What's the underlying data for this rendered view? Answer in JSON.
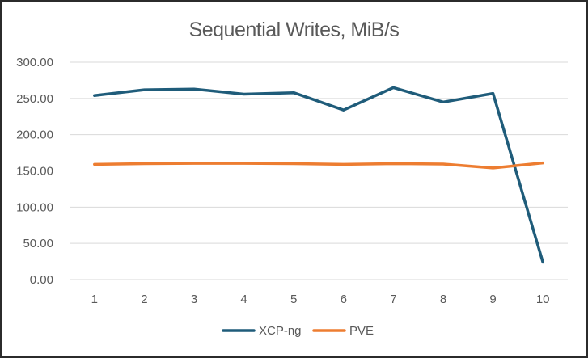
{
  "chart_data": {
    "type": "line",
    "title": "Sequential Writes, MiB/s",
    "xlabel": "",
    "ylabel": "",
    "categories": [
      "1",
      "2",
      "3",
      "4",
      "5",
      "6",
      "7",
      "8",
      "9",
      "10"
    ],
    "y_tick_labels": [
      "0.00",
      "50.00",
      "100.00",
      "150.00",
      "200.00",
      "250.00",
      "300.00"
    ],
    "ylim": [
      0,
      300
    ],
    "grid": true,
    "legend": "bottom",
    "series": [
      {
        "name": "XCP-ng",
        "color": "#1f5c7a",
        "values": [
          254,
          262,
          263,
          256,
          258,
          234,
          265,
          245,
          257,
          24
        ]
      },
      {
        "name": "PVE",
        "color": "#ed7d31",
        "values": [
          159,
          160,
          160.5,
          160.5,
          160,
          159,
          160,
          159.5,
          154,
          161
        ]
      }
    ]
  }
}
